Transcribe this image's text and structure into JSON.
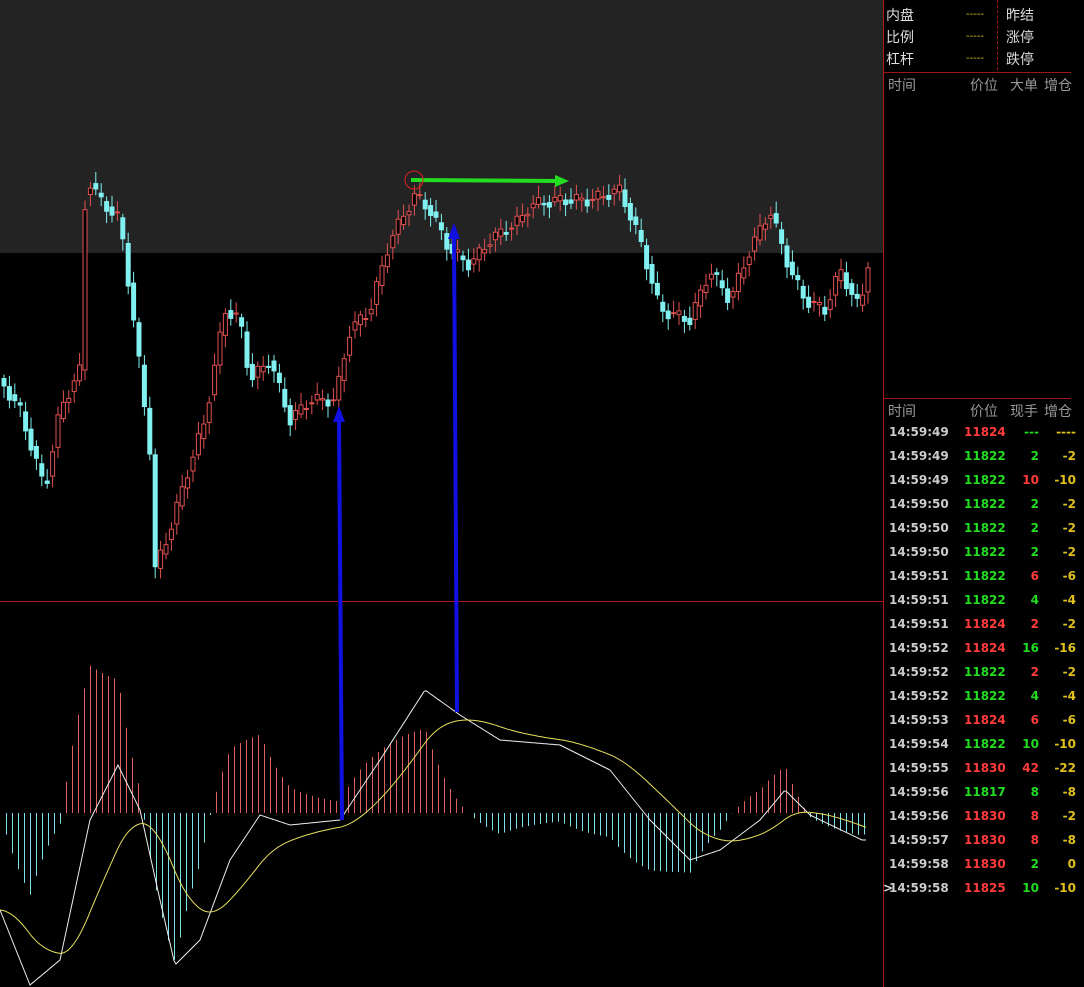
{
  "quote_panel": {
    "rows": [
      [
        "内盘",
        "-----",
        "昨结"
      ],
      [
        "比例",
        "-----",
        "涨停"
      ],
      [
        "杠杆",
        "-----",
        "跌停"
      ]
    ]
  },
  "big_order_panel": {
    "headers": [
      "时间",
      "价位",
      "大单",
      "增仓"
    ]
  },
  "tick_panel": {
    "headers": [
      "时间",
      "价位",
      "现手",
      "增仓"
    ],
    "current_marker": ">",
    "rows": [
      {
        "time": "14:59:49",
        "price": "11824",
        "price_color": "#ff3b3b",
        "volume": "---",
        "volume_color": "#22dd22",
        "change": "----"
      },
      {
        "time": "14:59:49",
        "price": "11822",
        "price_color": "#22dd22",
        "volume": "2",
        "volume_color": "#22dd22",
        "change": "-2"
      },
      {
        "time": "14:59:49",
        "price": "11822",
        "price_color": "#22dd22",
        "volume": "10",
        "volume_color": "#ff3b3b",
        "change": "-10"
      },
      {
        "time": "14:59:50",
        "price": "11822",
        "price_color": "#22dd22",
        "volume": "2",
        "volume_color": "#22dd22",
        "change": "-2"
      },
      {
        "time": "14:59:50",
        "price": "11822",
        "price_color": "#22dd22",
        "volume": "2",
        "volume_color": "#22dd22",
        "change": "-2"
      },
      {
        "time": "14:59:50",
        "price": "11822",
        "price_color": "#22dd22",
        "volume": "2",
        "volume_color": "#22dd22",
        "change": "-2"
      },
      {
        "time": "14:59:51",
        "price": "11822",
        "price_color": "#22dd22",
        "volume": "6",
        "volume_color": "#ff3b3b",
        "change": "-6"
      },
      {
        "time": "14:59:51",
        "price": "11822",
        "price_color": "#22dd22",
        "volume": "4",
        "volume_color": "#22dd22",
        "change": "-4"
      },
      {
        "time": "14:59:51",
        "price": "11824",
        "price_color": "#ff3b3b",
        "volume": "2",
        "volume_color": "#ff3b3b",
        "change": "-2"
      },
      {
        "time": "14:59:52",
        "price": "11824",
        "price_color": "#ff3b3b",
        "volume": "16",
        "volume_color": "#22dd22",
        "change": "-16"
      },
      {
        "time": "14:59:52",
        "price": "11822",
        "price_color": "#22dd22",
        "volume": "2",
        "volume_color": "#ff3b3b",
        "change": "-2"
      },
      {
        "time": "14:59:52",
        "price": "11822",
        "price_color": "#22dd22",
        "volume": "4",
        "volume_color": "#22dd22",
        "change": "-4"
      },
      {
        "time": "14:59:53",
        "price": "11824",
        "price_color": "#ff3b3b",
        "volume": "6",
        "volume_color": "#ff3b3b",
        "change": "-6"
      },
      {
        "time": "14:59:54",
        "price": "11822",
        "price_color": "#22dd22",
        "volume": "10",
        "volume_color": "#22dd22",
        "change": "-10"
      },
      {
        "time": "14:59:55",
        "price": "11830",
        "price_color": "#ff3b3b",
        "volume": "42",
        "volume_color": "#ff3b3b",
        "change": "-22"
      },
      {
        "time": "14:59:56",
        "price": "11817",
        "price_color": "#22dd22",
        "volume": "8",
        "volume_color": "#22dd22",
        "change": "-8"
      },
      {
        "time": "14:59:56",
        "price": "11830",
        "price_color": "#ff3b3b",
        "volume": "8",
        "volume_color": "#ff3b3b",
        "change": "-2"
      },
      {
        "time": "14:59:57",
        "price": "11830",
        "price_color": "#ff3b3b",
        "volume": "8",
        "volume_color": "#ff3b3b",
        "change": "-8"
      },
      {
        "time": "14:59:58",
        "price": "11830",
        "price_color": "#ff3b3b",
        "volume": "2",
        "volume_color": "#22dd22",
        "change": "0"
      },
      {
        "time": "14:59:58",
        "price": "11825",
        "price_color": "#ff3b3b",
        "volume": "10",
        "volume_color": "#22dd22",
        "change": "-10"
      }
    ]
  }
}
